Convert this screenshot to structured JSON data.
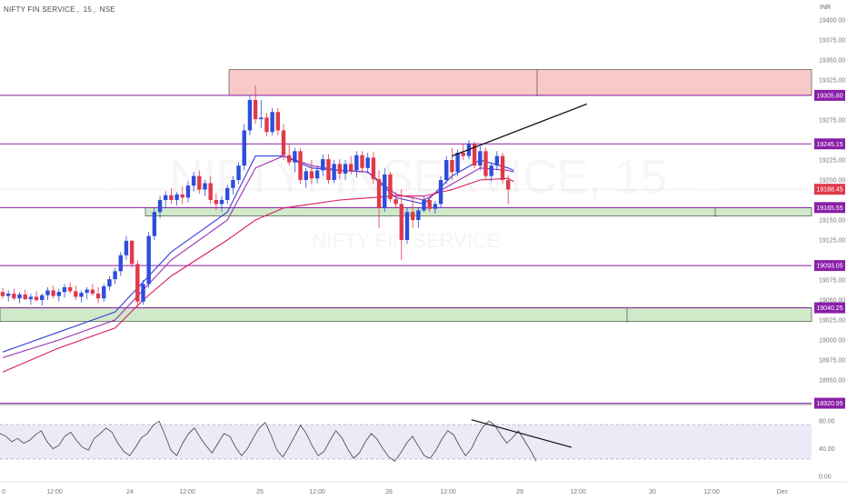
{
  "header": {
    "symbol": "NIFTY FIN SERVICE",
    "interval": "15",
    "exchange": "NSE",
    "currency": "INR"
  },
  "watermark": {
    "ticker": "NIFTYFINSERVICE, 15",
    "name": "NIFTY FIN SERVICE"
  },
  "colors": {
    "up_candle": "#2e4ddb",
    "down_candle": "#e0394b",
    "level_line": "#8a1fa8",
    "supply_zone": "#f9c8c8",
    "demand_zone": "#cfe9c9",
    "ema_fast": "#3a3fd8",
    "ema_mid": "#9b2fb3",
    "ema_slow": "#d81b60",
    "rsi_band": "#ede9f7"
  },
  "chart_data": [
    {
      "type": "candlestick",
      "title": "",
      "price_axis_ticks": [
        "19400.00",
        "19375.00",
        "19350.00",
        "19325.00",
        "19275.00",
        "19225.00",
        "19200.00",
        "19150.00",
        "19125.00",
        "19075.00",
        "19050.00",
        "19025.00",
        "19000.00",
        "18975.00",
        "18950.00"
      ],
      "time_axis_ticks": [
        "0",
        "12:00",
        "24",
        "12:00",
        "25",
        "12:00",
        "28",
        "12:00",
        "29",
        "12:00",
        "30",
        "12:00",
        "Dec"
      ],
      "ylim": [
        18925,
        19425
      ],
      "price_levels": [
        {
          "label": "19305.80",
          "value": 19305.8
        },
        {
          "label": "19245.15",
          "value": 19245.15
        },
        {
          "label": "19188.45",
          "value": 19188.45,
          "current": true
        },
        {
          "label": "19165.55",
          "value": 19165.55
        },
        {
          "label": "19093.05",
          "value": 19093.05
        },
        {
          "label": "19040.25",
          "value": 19040.25
        },
        {
          "label": "18920.95",
          "value": 18920.95
        }
      ],
      "zones": [
        {
          "kind": "supply",
          "from": 19305.8,
          "to": 19338
        },
        {
          "kind": "demand",
          "from": 19155,
          "to": 19165.55
        },
        {
          "kind": "demand",
          "from": 19023,
          "to": 19040.25
        }
      ],
      "candles": [
        [
          19060,
          19065,
          19052,
          19055
        ],
        [
          19055,
          19062,
          19048,
          19058
        ],
        [
          19058,
          19064,
          19050,
          19052
        ],
        [
          19052,
          19060,
          19046,
          19057
        ],
        [
          19057,
          19063,
          19050,
          19051
        ],
        [
          19051,
          19058,
          19044,
          19054
        ],
        [
          19054,
          19061,
          19048,
          19050
        ],
        [
          19050,
          19058,
          19043,
          19056
        ],
        [
          19056,
          19066,
          19050,
          19062
        ],
        [
          19062,
          19068,
          19052,
          19055
        ],
        [
          19055,
          19064,
          19048,
          19060
        ],
        [
          19060,
          19070,
          19053,
          19066
        ],
        [
          19066,
          19072,
          19058,
          19061
        ],
        [
          19061,
          19068,
          19050,
          19054
        ],
        [
          19054,
          19062,
          19047,
          19059
        ],
        [
          19059,
          19066,
          19051,
          19063
        ],
        [
          19063,
          19070,
          19055,
          19058
        ],
        [
          19058,
          19066,
          19046,
          19052
        ],
        [
          19052,
          19070,
          19048,
          19067
        ],
        [
          19067,
          19080,
          19062,
          19076
        ],
        [
          19076,
          19090,
          19070,
          19086
        ],
        [
          19086,
          19110,
          19080,
          19106
        ],
        [
          19106,
          19130,
          19100,
          19124
        ],
        [
          19124,
          19125,
          19090,
          19095
        ],
        [
          19095,
          19100,
          19040,
          19048
        ],
        [
          19048,
          19075,
          19044,
          19070
        ],
        [
          19070,
          19135,
          19065,
          19130
        ],
        [
          19130,
          19165,
          19125,
          19160
        ],
        [
          19160,
          19180,
          19152,
          19175
        ],
        [
          19175,
          19186,
          19166,
          19181
        ],
        [
          19181,
          19190,
          19170,
          19175
        ],
        [
          19175,
          19185,
          19168,
          19182
        ],
        [
          19182,
          19192,
          19170,
          19178
        ],
        [
          19178,
          19198,
          19172,
          19193
        ],
        [
          19193,
          19210,
          19186,
          19205
        ],
        [
          19205,
          19212,
          19183,
          19188
        ],
        [
          19188,
          19200,
          19180,
          19196
        ],
        [
          19196,
          19205,
          19170,
          19175
        ],
        [
          19175,
          19183,
          19162,
          19170
        ],
        [
          19170,
          19180,
          19160,
          19175
        ],
        [
          19175,
          19194,
          19170,
          19190
        ],
        [
          19190,
          19205,
          19182,
          19200
        ],
        [
          19200,
          19222,
          19195,
          19218
        ],
        [
          19218,
          19270,
          19212,
          19262
        ],
        [
          19262,
          19305,
          19256,
          19300
        ],
        [
          19300,
          19318,
          19270,
          19276
        ],
        [
          19276,
          19300,
          19265,
          19278
        ],
        [
          19278,
          19284,
          19255,
          19260
        ],
        [
          19260,
          19290,
          19256,
          19285
        ],
        [
          19285,
          19290,
          19256,
          19262
        ],
        [
          19262,
          19270,
          19225,
          19231
        ],
        [
          19231,
          19245,
          19218,
          19222
        ],
        [
          19222,
          19240,
          19210,
          19236
        ],
        [
          19236,
          19240,
          19195,
          19200
        ],
        [
          19200,
          19215,
          19190,
          19211
        ],
        [
          19211,
          19225,
          19195,
          19202
        ],
        [
          19202,
          19218,
          19196,
          19212
        ],
        [
          19212,
          19232,
          19205,
          19226
        ],
        [
          19226,
          19232,
          19195,
          19200
        ],
        [
          19200,
          19225,
          19196,
          19220
        ],
        [
          19220,
          19226,
          19201,
          19208
        ],
        [
          19208,
          19225,
          19200,
          19220
        ],
        [
          19220,
          19230,
          19207,
          19212
        ],
        [
          19212,
          19236,
          19203,
          19231
        ],
        [
          19231,
          19236,
          19210,
          19215
        ],
        [
          19215,
          19234,
          19208,
          19228
        ],
        [
          19228,
          19235,
          19195,
          19201
        ],
        [
          19201,
          19212,
          19140,
          19165
        ],
        [
          19165,
          19215,
          19160,
          19207
        ],
        [
          19207,
          19210,
          19172,
          19176
        ],
        [
          19176,
          19185,
          19165,
          19170
        ],
        [
          19170,
          19188,
          19100,
          19125
        ],
        [
          19125,
          19165,
          19120,
          19160
        ],
        [
          19160,
          19180,
          19140,
          19150
        ],
        [
          19150,
          19166,
          19140,
          19162
        ],
        [
          19162,
          19180,
          19160,
          19175
        ],
        [
          19175,
          19178,
          19160,
          19164
        ],
        [
          19164,
          19174,
          19158,
          19170
        ],
        [
          19170,
          19205,
          19165,
          19200
        ],
        [
          19200,
          19230,
          19195,
          19225
        ],
        [
          19225,
          19240,
          19200,
          19210
        ],
        [
          19210,
          19238,
          19205,
          19234
        ],
        [
          19234,
          19245,
          19225,
          19230
        ],
        [
          19230,
          19250,
          19226,
          19245
        ],
        [
          19245,
          19248,
          19215,
          19218
        ],
        [
          19218,
          19242,
          19212,
          19236
        ],
        [
          19236,
          19240,
          19200,
          19205
        ],
        [
          19205,
          19222,
          19198,
          19218
        ],
        [
          19218,
          19236,
          19212,
          19230
        ],
        [
          19230,
          19234,
          19195,
          19200
        ],
        [
          19200,
          19206,
          19170,
          19188
        ]
      ],
      "ema_series": [
        {
          "color": "#3a3fd8",
          "points": [
            [
              0,
              18985
            ],
            [
              10,
              19010
            ],
            [
              20,
              19035
            ],
            [
              30,
              19110
            ],
            [
              40,
              19160
            ],
            [
              45,
              19230
            ],
            [
              50,
              19230
            ],
            [
              55,
              19215
            ],
            [
              60,
              19212
            ],
            [
              65,
              19210
            ],
            [
              70,
              19178
            ],
            [
              75,
              19170
            ],
            [
              80,
              19205
            ],
            [
              85,
              19225
            ],
            [
              90,
              19215
            ],
            [
              91,
              19212
            ]
          ]
        },
        {
          "color": "#9b2fb3",
          "points": [
            [
              0,
              18978
            ],
            [
              10,
              19000
            ],
            [
              20,
              19025
            ],
            [
              30,
              19100
            ],
            [
              40,
              19150
            ],
            [
              45,
              19215
            ],
            [
              50,
              19230
            ],
            [
              55,
              19218
            ],
            [
              60,
              19212
            ],
            [
              65,
              19210
            ],
            [
              70,
              19182
            ],
            [
              75,
              19175
            ],
            [
              80,
              19195
            ],
            [
              85,
              19215
            ],
            [
              90,
              19212
            ],
            [
              91,
              19210
            ]
          ]
        },
        {
          "color": "#d81b60",
          "points": [
            [
              0,
              18960
            ],
            [
              10,
              18990
            ],
            [
              20,
              19015
            ],
            [
              25,
              19050
            ],
            [
              30,
              19080
            ],
            [
              40,
              19125
            ],
            [
              45,
              19150
            ],
            [
              50,
              19165
            ],
            [
              55,
              19170
            ],
            [
              60,
              19175
            ],
            [
              70,
              19180
            ],
            [
              75,
              19180
            ],
            [
              80,
              19188
            ],
            [
              85,
              19200
            ],
            [
              90,
              19202
            ],
            [
              91,
              19198
            ]
          ]
        }
      ],
      "trendline": {
        "from": [
          80,
          19230
        ],
        "to": [
          104,
          19295
        ]
      }
    },
    {
      "type": "line",
      "title": "",
      "ticks": [
        "80.00",
        "40.00",
        "0.00"
      ],
      "ylim": [
        0,
        100
      ],
      "band": [
        25,
        75
      ],
      "values": [
        62,
        58,
        50,
        55,
        48,
        52,
        60,
        66,
        50,
        40,
        45,
        58,
        64,
        52,
        42,
        38,
        55,
        62,
        70,
        64,
        48,
        36,
        30,
        42,
        56,
        62,
        74,
        80,
        60,
        38,
        30,
        48,
        62,
        70,
        56,
        44,
        34,
        48,
        62,
        58,
        42,
        30,
        40,
        56,
        70,
        78,
        60,
        38,
        28,
        42,
        58,
        74,
        62,
        44,
        30,
        36,
        52,
        66,
        56,
        40,
        26,
        34,
        50,
        62,
        54,
        40,
        28,
        22,
        34,
        48,
        58,
        44,
        30,
        26,
        38,
        54,
        66,
        60,
        44,
        30,
        40,
        58,
        72,
        80,
        74,
        60,
        48,
        56,
        66,
        52,
        38,
        22
      ],
      "trendline": {
        "from": [
          80,
          82
        ],
        "to": [
          97,
          42
        ]
      }
    }
  ]
}
